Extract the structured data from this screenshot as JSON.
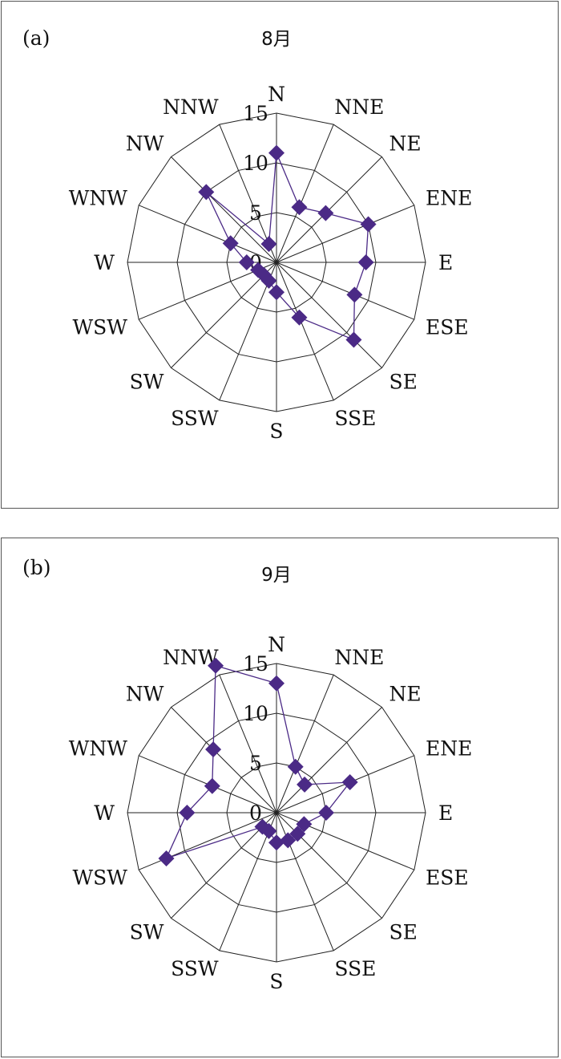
{
  "colors": {
    "series": "#4b2a86",
    "grid": "#222222"
  },
  "chart_data": [
    {
      "type": "radar",
      "panel_label": "(a)",
      "title": "8月",
      "directions": [
        "N",
        "NNE",
        "NE",
        "ENE",
        "E",
        "ESE",
        "SE",
        "SSE",
        "S",
        "SSW",
        "SW",
        "WSW",
        "W",
        "WNW",
        "NW",
        "NNW"
      ],
      "rlim": [
        0,
        15
      ],
      "ticks": [
        0,
        5,
        10,
        15
      ],
      "tick_labels": [
        "0",
        "5",
        "10",
        "15"
      ],
      "grid": true,
      "series": [
        {
          "values": [
            11,
            6,
            7,
            10,
            9,
            8.5,
            11,
            6,
            3,
            2,
            1.8,
            2,
            3,
            5,
            10,
            2
          ]
        }
      ]
    },
    {
      "type": "radar",
      "panel_label": "(b)",
      "title": "9月",
      "directions": [
        "N",
        "NNE",
        "NE",
        "ENE",
        "E",
        "ESE",
        "SE",
        "SSE",
        "S",
        "SSW",
        "SW",
        "WSW",
        "W",
        "WNW",
        "NW",
        "NNW"
      ],
      "rlim": [
        0,
        15
      ],
      "ticks": [
        0,
        5,
        10,
        15
      ],
      "tick_labels": [
        "0",
        "5",
        "10",
        "15"
      ],
      "grid": true,
      "series": [
        {
          "values": [
            13,
            5,
            4,
            8,
            5,
            3,
            3,
            3,
            3,
            2,
            2,
            12,
            9,
            7,
            9,
            16
          ]
        }
      ]
    }
  ]
}
